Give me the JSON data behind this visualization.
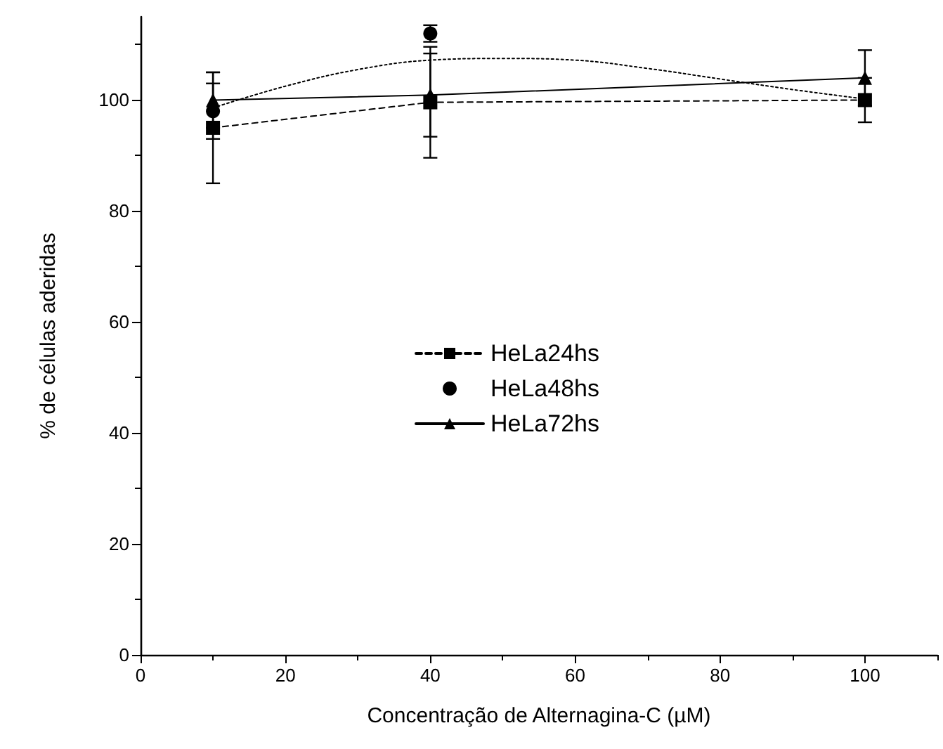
{
  "chart_data": {
    "type": "line",
    "xlabel": "Concentração de Alternagina-C (µM)",
    "ylabel": "% de células aderidas",
    "xlim": [
      0,
      110
    ],
    "xticks": [
      0,
      20,
      40,
      60,
      80,
      100
    ],
    "ylim": [
      0,
      115
    ],
    "yticks": [
      0,
      20,
      40,
      60,
      80,
      100
    ],
    "grid": false,
    "legend": "center",
    "series": [
      {
        "name": "HeLa24hs",
        "color": "#000000",
        "marker": "square",
        "line_style": "dashed",
        "x": [
          10,
          40,
          100
        ],
        "values": [
          95,
          99.6,
          100
        ],
        "errors": [
          10,
          10,
          4
        ]
      },
      {
        "name": "HeLa48hs",
        "type": "scatter",
        "color": "#000000",
        "marker": "circle",
        "x": [
          10,
          40
        ],
        "values": [
          98,
          112
        ],
        "errors": [
          5,
          1.5
        ]
      },
      {
        "type": "line",
        "color": "#000000",
        "marker": "none",
        "line_style": "dotted",
        "x": [
          10,
          20,
          30,
          40,
          50,
          60,
          70,
          80,
          90,
          100
        ],
        "values": [
          98.6,
          102.5,
          105.5,
          107.2,
          107.5,
          107.2,
          105.7,
          103.8,
          101.9,
          100.2
        ]
      },
      {
        "name": "HeLa72hs",
        "color": "#000000",
        "marker": "triangle",
        "line_style": "solid",
        "x": [
          10,
          40,
          100
        ],
        "values": [
          100,
          100.9,
          104
        ],
        "errors": [
          5,
          7.5,
          5
        ]
      }
    ]
  }
}
